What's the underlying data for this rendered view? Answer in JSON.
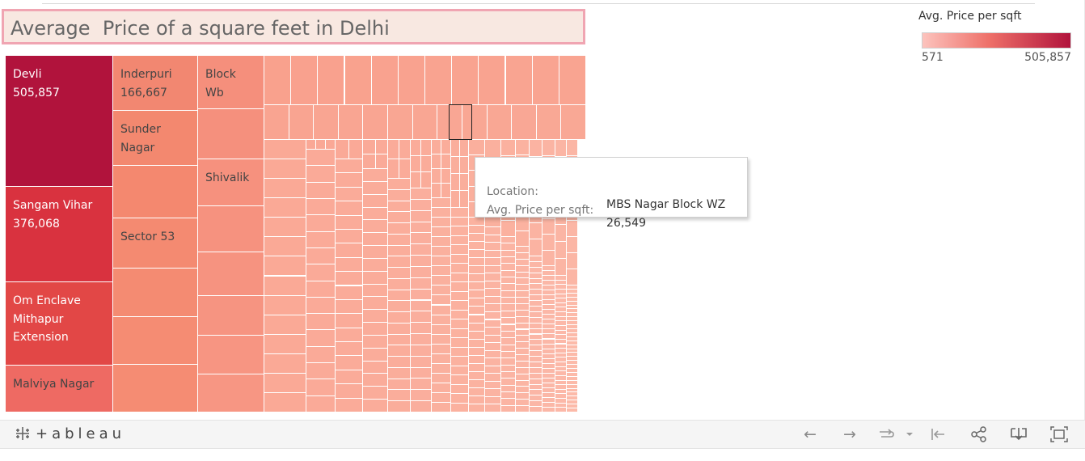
{
  "title": "Average  Price of a square feet in Delhi",
  "legend": {
    "title": "Avg. Price per sqft",
    "min": "571",
    "max": "505,857"
  },
  "tooltip": {
    "location_key": "Location:",
    "location_value": "MBS Nagar Block WZ",
    "price_key": "Avg. Price per sqft:",
    "price_value": "26,549"
  },
  "treemap_labels": {
    "devli": {
      "name": "Devli",
      "value": "505,857"
    },
    "sangam": {
      "name": "Sangam Vihar",
      "value": "376,068"
    },
    "om": {
      "line1": "Om Enclave",
      "line2": "Mithapur",
      "line3": "Extension"
    },
    "malviya": "Malviya Nagar",
    "inderpuri": {
      "name": "Inderpuri",
      "value": "166,667"
    },
    "sunder": {
      "line1": "Sunder",
      "line2": "Nagar"
    },
    "sector53": "Sector 53",
    "block": {
      "line1": "Block",
      "line2": "Wb"
    },
    "shivalik": "Shivalik"
  },
  "colors": {
    "devli": "#b1133c",
    "sangam": "#d7313f",
    "om": "#e24746",
    "malviya": "#ee6a63",
    "inderpuri": "#f28771",
    "block": "#f58f7d",
    "small": "#fca994",
    "tiny": "#fcbdaa"
  },
  "toolbar": {
    "logo_text": "+ableau",
    "undo_icon": "←",
    "redo_icon": "→",
    "revert_icon": "⟲",
    "pause_icon": "⇤",
    "share_icon": "share-icon",
    "download_icon": "download-icon",
    "fullscreen_icon": "fullscreen-icon"
  }
}
